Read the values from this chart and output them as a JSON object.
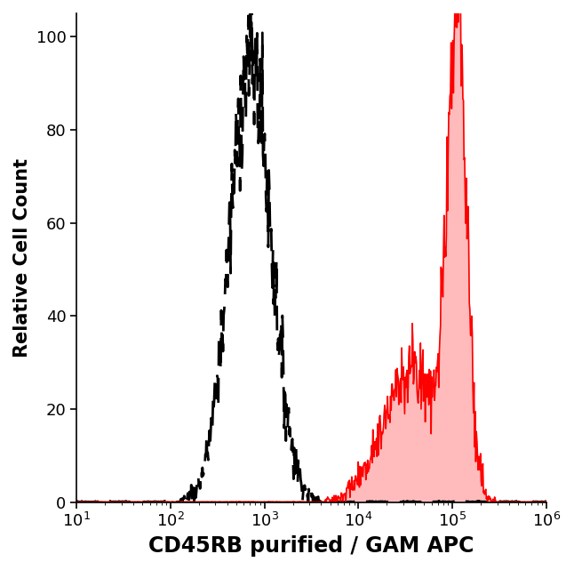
{
  "title": "",
  "xlabel": "CD45RB purified / GAM APC",
  "ylabel": "Relative Cell Count",
  "xlim_log": [
    1,
    6
  ],
  "ylim": [
    0,
    105
  ],
  "yticks": [
    0,
    20,
    40,
    60,
    80,
    100
  ],
  "background_color": "#ffffff",
  "dashed_peak_log": 2.85,
  "dashed_sigma_log": 0.22,
  "dashed_peak_height": 95,
  "solid_peak_log": 5.05,
  "solid_sigma_log": 0.1,
  "solid_peak_height": 100,
  "solid_shoulder_peak_log": 4.55,
  "solid_shoulder_sigma_log": 0.3,
  "solid_shoulder_height": 28,
  "dashed_color": "#000000",
  "solid_line_color": "#ff0000",
  "solid_fill_color": "#ffbbbb",
  "xlabel_fontsize": 17,
  "ylabel_fontsize": 15,
  "tick_fontsize": 13,
  "line_width": 2.0,
  "dash_on": 10,
  "dash_off": 5
}
